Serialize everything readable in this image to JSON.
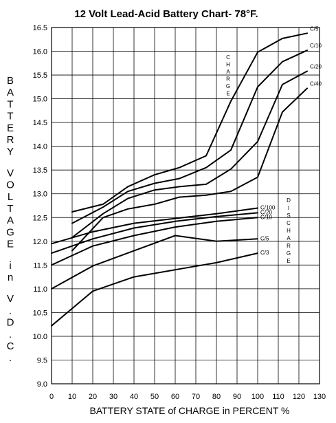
{
  "chart_data": {
    "type": "line",
    "title": "12 Volt Lead-Acid Battery Chart- 78°F.",
    "xlabel": "BATTERY STATE of CHARGE in PERCENT %",
    "ylabel": "BATTERY VOLTAGE in V.D.C.",
    "xlim": [
      0,
      130
    ],
    "ylim": [
      9.0,
      16.5
    ],
    "x_ticks": [
      "0",
      "10",
      "20",
      "30",
      "40",
      "50",
      "60",
      "70",
      "80",
      "90",
      "100",
      "110",
      "120",
      "130"
    ],
    "y_ticks": [
      "9.0",
      "9.5",
      "10.0",
      "10.5",
      "11.0",
      "11.5",
      "12.0",
      "12.5",
      "13.0",
      "13.5",
      "14.0",
      "14.5",
      "15.0",
      "15.5",
      "16.0",
      "16.5"
    ],
    "grid": true,
    "group_labels": {
      "charge": "CHARGE",
      "discharge": "DISCHARGE"
    },
    "series": [
      {
        "name": "C/5",
        "group": "charge",
        "x": [
          10,
          25,
          37,
          50,
          62,
          75,
          87,
          100,
          112,
          124
        ],
        "y": [
          12.62,
          12.78,
          13.15,
          13.4,
          13.55,
          13.8,
          14.95,
          15.98,
          16.27,
          16.38
        ]
      },
      {
        "name": "C/10",
        "group": "charge",
        "x": [
          10,
          25,
          37,
          50,
          62,
          75,
          87,
          100,
          112,
          124
        ],
        "y": [
          12.38,
          12.72,
          13.05,
          13.22,
          13.32,
          13.55,
          13.92,
          15.25,
          15.78,
          16.02
        ]
      },
      {
        "name": "C/20",
        "group": "charge",
        "x": [
          10,
          25,
          37,
          50,
          62,
          75,
          87,
          100,
          112,
          124
        ],
        "y": [
          12.08,
          12.58,
          12.9,
          13.08,
          13.15,
          13.2,
          13.52,
          14.1,
          15.3,
          15.58
        ]
      },
      {
        "name": "C/40",
        "group": "charge",
        "x": [
          10,
          25,
          37,
          50,
          62,
          75,
          87,
          100,
          112,
          124
        ],
        "y": [
          11.8,
          12.5,
          12.68,
          12.78,
          12.93,
          12.97,
          13.05,
          13.35,
          14.72,
          15.22
        ]
      },
      {
        "name": "C/100",
        "group": "discharge",
        "x": [
          0,
          20,
          40,
          60,
          80,
          100
        ],
        "y": [
          11.95,
          12.2,
          12.38,
          12.48,
          12.58,
          12.7
        ]
      },
      {
        "name": "C/20",
        "group": "discharge",
        "x": [
          0,
          20,
          40,
          60,
          80,
          100
        ],
        "y": [
          11.75,
          12.05,
          12.28,
          12.42,
          12.52,
          12.6
        ]
      },
      {
        "name": "C/10",
        "group": "discharge",
        "x": [
          0,
          20,
          40,
          60,
          80,
          100
        ],
        "y": [
          11.5,
          11.9,
          12.12,
          12.3,
          12.42,
          12.5
        ]
      },
      {
        "name": "C/5",
        "group": "discharge",
        "x": [
          0,
          20,
          40,
          60,
          80,
          100
        ],
        "y": [
          11.0,
          11.48,
          11.8,
          12.12,
          12.0,
          12.05
        ]
      },
      {
        "name": "C/3",
        "group": "discharge",
        "x": [
          0,
          20,
          40,
          60,
          80,
          100
        ],
        "y": [
          10.22,
          10.95,
          11.25,
          11.4,
          11.55,
          11.75
        ]
      }
    ]
  }
}
